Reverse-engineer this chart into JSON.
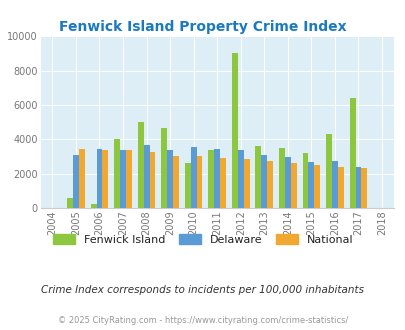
{
  "title": "Fenwick Island Property Crime Index",
  "title_color": "#1a7abf",
  "years": [
    2004,
    2005,
    2006,
    2007,
    2008,
    2009,
    2010,
    2011,
    2012,
    2013,
    2014,
    2015,
    2016,
    2017,
    2018
  ],
  "fenwick_island": [
    null,
    600,
    200,
    4000,
    5000,
    4650,
    2600,
    3400,
    9000,
    3600,
    3500,
    3200,
    4300,
    6400,
    null
  ],
  "delaware": [
    null,
    3100,
    3450,
    3400,
    3650,
    3400,
    3550,
    3450,
    3400,
    3100,
    2950,
    2650,
    2750,
    2400,
    null
  ],
  "national": [
    null,
    3450,
    3400,
    3350,
    3250,
    3000,
    3000,
    2900,
    2850,
    2750,
    2600,
    2500,
    2400,
    2350,
    null
  ],
  "fenwick_color": "#8dc63f",
  "delaware_color": "#5b9bd5",
  "national_color": "#f0a830",
  "ylim": [
    0,
    10000
  ],
  "yticks": [
    0,
    2000,
    4000,
    6000,
    8000,
    10000
  ],
  "background_color": "#ddeef6",
  "grid_color": "#ffffff",
  "subtitle": "Crime Index corresponds to incidents per 100,000 inhabitants",
  "footer": "© 2025 CityRating.com - https://www.cityrating.com/crime-statistics/",
  "bar_width": 0.25
}
